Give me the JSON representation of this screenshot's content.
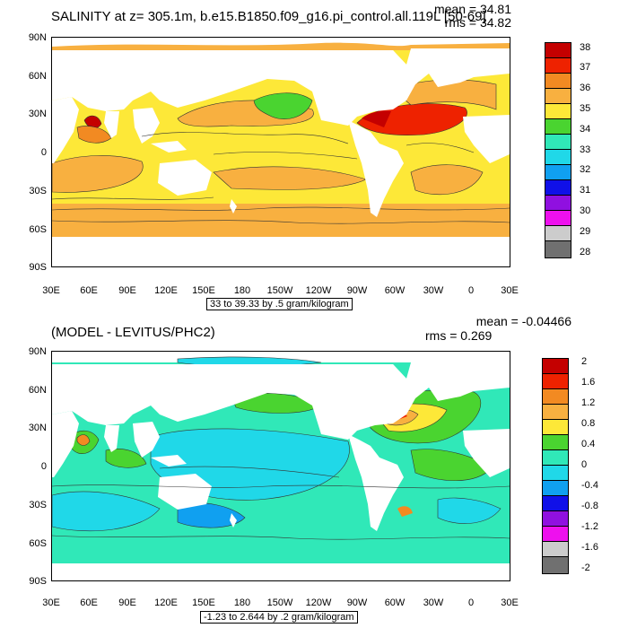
{
  "panel_top": {
    "title": "SALINITY at z= 305.1m, b.e15.B1850.f09_g16.pi_control.all.119L [50-69]",
    "mean_label": "mean = 34.81",
    "rms_label": "rms = 34.82",
    "lat_ticks": [
      "90N",
      "60N",
      "30N",
      "0",
      "30S",
      "60S",
      "90S"
    ],
    "lon_ticks": [
      "30E",
      "60E",
      "90E",
      "120E",
      "150E",
      "180",
      "150W",
      "120W",
      "90W",
      "60W",
      "30W",
      "0",
      "30E"
    ],
    "info": "33 to 39.33 by .5 gram/kilogram",
    "colorbar_labels": [
      "38",
      "37",
      "36",
      "35",
      "34",
      "33",
      "32",
      "31",
      "30",
      "29",
      "28"
    ],
    "colorbar_colors": [
      "#c40000",
      "#ee2200",
      "#f28a22",
      "#f8b040",
      "#fde838",
      "#4ad430",
      "#30e8b8",
      "#20d8e8",
      "#10a0f0",
      "#1010e8",
      "#9010e0",
      "#ee10ee",
      "#cccccc",
      "#707070"
    ]
  },
  "panel_bottom": {
    "title": "(MODEL - LEVITUS/PHC2)",
    "mean_label": "mean = -0.04466",
    "rms_label": "rms = 0.269",
    "lat_ticks": [
      "90N",
      "60N",
      "30N",
      "0",
      "30S",
      "60S",
      "90S"
    ],
    "lon_ticks": [
      "30E",
      "60E",
      "90E",
      "120E",
      "150E",
      "180",
      "150W",
      "120W",
      "90W",
      "60W",
      "30W",
      "0",
      "30E"
    ],
    "info": "-1.23 to 2.644 by .2 gram/kilogram",
    "colorbar_labels": [
      "2",
      "1.6",
      "1.2",
      "0.8",
      "0.4",
      "0",
      "-0.4",
      "-0.8",
      "-1.2",
      "-1.6",
      "-2"
    ],
    "colorbar_colors": [
      "#c40000",
      "#ee2200",
      "#f28a22",
      "#f8b040",
      "#fde838",
      "#4ad430",
      "#30e8b8",
      "#20d8e8",
      "#10a0f0",
      "#1010e8",
      "#9010e0",
      "#ee10ee",
      "#cccccc",
      "#707070"
    ]
  }
}
